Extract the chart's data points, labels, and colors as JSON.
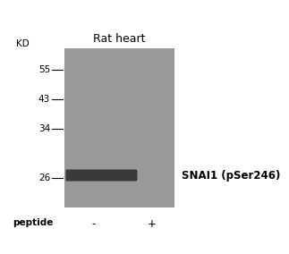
{
  "title": "Rat heart",
  "kd_label": "KD",
  "mw_markers": [
    55,
    43,
    34,
    26
  ],
  "peptide_label": "peptide",
  "peptide_minus": "-",
  "peptide_plus": "+",
  "antibody_label": "SNAI1 (pSer246)",
  "gel_color": "#999999",
  "band_color": "#2a2a2a",
  "fig_bg_color": "#ffffff",
  "title_fontsize": 9,
  "label_fontsize": 7.5,
  "marker_fontsize": 7.5,
  "antibody_fontsize": 8.5
}
